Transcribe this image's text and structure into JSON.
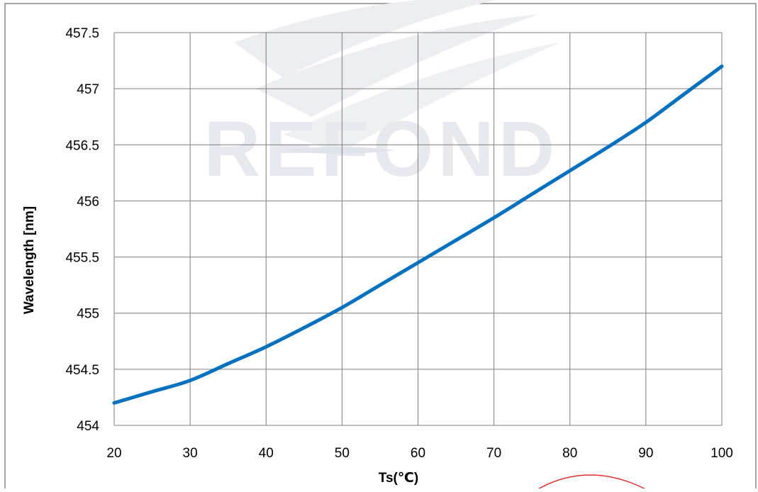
{
  "chart_data": {
    "type": "line",
    "title": "",
    "xlabel": "Ts(℃)",
    "ylabel": "Wavelength  [nm]",
    "xlim": [
      20,
      100
    ],
    "ylim": [
      454,
      457.5
    ],
    "x_ticks": [
      20,
      30,
      40,
      50,
      60,
      70,
      80,
      90,
      100
    ],
    "y_ticks": [
      454,
      454.5,
      455,
      455.5,
      456,
      456.5,
      457,
      457.5
    ],
    "grid": true,
    "legend": "none",
    "series": [
      {
        "color": "#0070c0",
        "x": [
          20,
          25,
          30,
          35,
          40,
          45,
          50,
          55,
          60,
          65,
          70,
          75,
          80,
          85,
          90,
          95,
          100
        ],
        "values": [
          454.2,
          454.3,
          454.4,
          454.55,
          454.7,
          454.87,
          455.05,
          455.25,
          455.45,
          455.65,
          455.85,
          456.06,
          456.27,
          456.48,
          456.7,
          456.95,
          457.2
        ]
      }
    ]
  },
  "watermark": {
    "text": "REFOND",
    "color": "#e7e9ee"
  },
  "colors": {
    "grid": "#7f7f7f",
    "frame": "#878787",
    "stamp": "#e03030"
  }
}
